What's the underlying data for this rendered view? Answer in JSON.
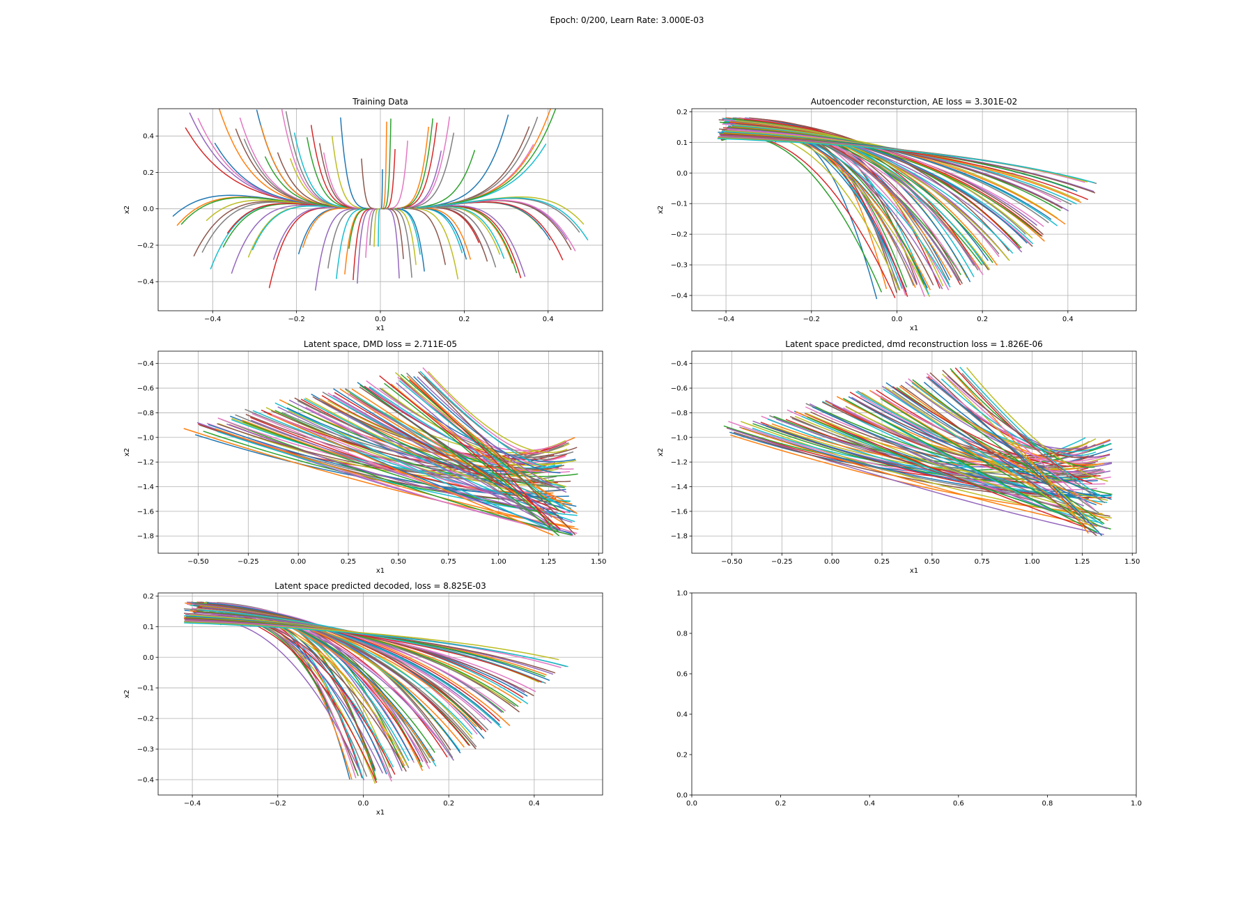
{
  "figure": {
    "title": "Epoch: 0/200, Learn Rate: 3.000E-03"
  },
  "palette": [
    "#1f77b4",
    "#ff7f0e",
    "#2ca02c",
    "#d62728",
    "#9467bd",
    "#8c564b",
    "#e377c2",
    "#7f7f7f",
    "#bcbd22",
    "#17becf"
  ],
  "chart_data": [
    {
      "type": "line",
      "title": "Training Data",
      "xlabel": "x1",
      "ylabel": "x2",
      "xlim": [
        -0.53,
        0.53
      ],
      "ylim": [
        -0.56,
        0.55
      ],
      "xticks": [
        -0.4,
        -0.2,
        0.0,
        0.2,
        0.4
      ],
      "xtick_labels": [
        "−0.4",
        "−0.2",
        "0.0",
        "0.2",
        "0.4"
      ],
      "yticks": [
        -0.4,
        -0.2,
        0.0,
        0.2,
        0.4
      ],
      "ytick_labels": [
        "−0.4",
        "−0.2",
        "0.0",
        "0.2",
        "0.4"
      ],
      "grid": true,
      "trajectory_family": "training",
      "trajectory_count": 100
    },
    {
      "type": "line",
      "title": "Autoencoder reconsturction, AE loss = 3.301E-02",
      "xlabel": "x1",
      "ylabel": "x2",
      "xlim": [
        -0.48,
        0.56
      ],
      "ylim": [
        -0.45,
        0.21
      ],
      "xticks": [
        -0.4,
        -0.2,
        0.0,
        0.2,
        0.4
      ],
      "xtick_labels": [
        "−0.4",
        "−0.2",
        "0.0",
        "0.2",
        "0.4"
      ],
      "yticks": [
        -0.4,
        -0.3,
        -0.2,
        -0.1,
        0.0,
        0.1,
        0.2
      ],
      "ytick_labels": [
        "−0.4",
        "−0.3",
        "−0.2",
        "−0.1",
        "0.0",
        "0.1",
        "0.2"
      ],
      "grid": true,
      "trajectory_family": "decoded",
      "trajectory_count": 100
    },
    {
      "type": "line",
      "title": "Latent space, DMD loss = 2.711E-05",
      "xlabel": "x1",
      "ylabel": "x2",
      "xlim": [
        -0.7,
        1.52
      ],
      "ylim": [
        -1.94,
        -0.3
      ],
      "xticks": [
        -0.5,
        -0.25,
        0.0,
        0.25,
        0.5,
        0.75,
        1.0,
        1.25,
        1.5
      ],
      "xtick_labels": [
        "−0.50",
        "−0.25",
        "0.00",
        "0.25",
        "0.50",
        "0.75",
        "1.00",
        "1.25",
        "1.50"
      ],
      "yticks": [
        -1.8,
        -1.6,
        -1.4,
        -1.2,
        -1.0,
        -0.8,
        -0.6,
        -0.4
      ],
      "ytick_labels": [
        "−1.8",
        "−1.6",
        "−1.4",
        "−1.2",
        "−1.0",
        "−0.8",
        "−0.6",
        "−0.4"
      ],
      "grid": true,
      "trajectory_family": "latent",
      "trajectory_count": 100
    },
    {
      "type": "line",
      "title": "Latent space predicted, dmd reconstruction loss = 1.826E-06",
      "xlabel": "x1",
      "ylabel": "x2",
      "xlim": [
        -0.7,
        1.52
      ],
      "ylim": [
        -1.94,
        -0.3
      ],
      "xticks": [
        -0.5,
        -0.25,
        0.0,
        0.25,
        0.5,
        0.75,
        1.0,
        1.25,
        1.5
      ],
      "xtick_labels": [
        "−0.50",
        "−0.25",
        "0.00",
        "0.25",
        "0.50",
        "0.75",
        "1.00",
        "1.25",
        "1.50"
      ],
      "yticks": [
        -1.8,
        -1.6,
        -1.4,
        -1.2,
        -1.0,
        -0.8,
        -0.6,
        -0.4
      ],
      "ytick_labels": [
        "−1.8",
        "−1.6",
        "−1.4",
        "−1.2",
        "−1.0",
        "−0.8",
        "−0.6",
        "−0.4"
      ],
      "grid": true,
      "trajectory_family": "latent",
      "trajectory_count": 100
    },
    {
      "type": "line",
      "title": "Latent space predicted decoded, loss = 8.825E-03",
      "xlabel": "x1",
      "ylabel": "x2",
      "xlim": [
        -0.48,
        0.56
      ],
      "ylim": [
        -0.45,
        0.21
      ],
      "xticks": [
        -0.4,
        -0.2,
        0.0,
        0.2,
        0.4
      ],
      "xtick_labels": [
        "−0.4",
        "−0.2",
        "0.0",
        "0.2",
        "0.4"
      ],
      "yticks": [
        -0.4,
        -0.3,
        -0.2,
        -0.1,
        0.0,
        0.1,
        0.2
      ],
      "ytick_labels": [
        "−0.4",
        "−0.3",
        "−0.2",
        "−0.1",
        "0.0",
        "0.1",
        "0.2"
      ],
      "grid": true,
      "trajectory_family": "decoded",
      "trajectory_count": 100
    },
    {
      "type": "line",
      "title": "",
      "xlabel": "",
      "ylabel": "",
      "xlim": [
        0,
        1
      ],
      "ylim": [
        0,
        1
      ],
      "xticks": [
        0,
        0.2,
        0.4,
        0.6,
        0.8,
        1.0
      ],
      "xtick_labels": [
        "0.0",
        "0.2",
        "0.4",
        "0.6",
        "0.8",
        "1.0"
      ],
      "yticks": [
        0,
        0.2,
        0.4,
        0.6,
        0.8,
        1.0
      ],
      "ytick_labels": [
        "0.0",
        "0.2",
        "0.4",
        "0.6",
        "0.8",
        "1.0"
      ],
      "grid": false,
      "trajectory_family": "none",
      "trajectory_count": 0
    }
  ]
}
